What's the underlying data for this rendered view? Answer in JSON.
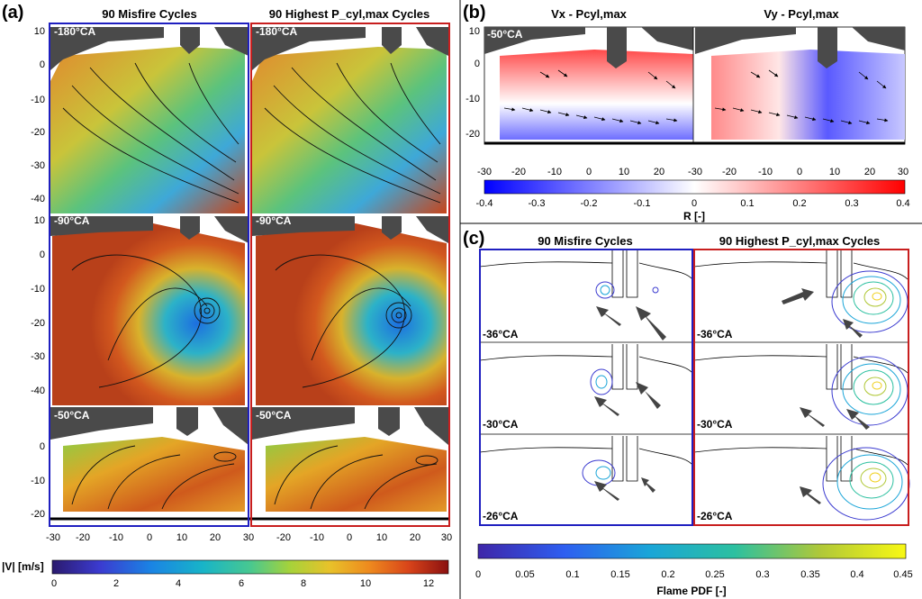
{
  "panel_a": {
    "label": "(a)",
    "col_titles": [
      "90 Misfire Cycles",
      "90 Highest P_cyl,max Cycles"
    ],
    "row_labels": [
      "-180°CA",
      "-90°CA",
      "-50°CA"
    ],
    "yticks_rows": [
      [
        "10",
        "0",
        "-10",
        "-20",
        "-30",
        "-40"
      ],
      [
        "10",
        "0",
        "-10",
        "-20",
        "-30",
        "-40"
      ],
      [
        "0",
        "-10",
        "-20"
      ]
    ],
    "xticks": [
      "-30",
      "-20",
      "-10",
      "0",
      "10",
      "20",
      "30",
      "-20",
      "-10",
      "0",
      "10",
      "20",
      "30"
    ],
    "colorbar_label": "|V| [m/s]",
    "colorbar_ticks": [
      "0",
      "2",
      "4",
      "6",
      "8",
      "10",
      "12"
    ],
    "colors": {
      "misfire_border": "#1f1fc0",
      "highest_border": "#c81e1e",
      "head": "#4a4a4a"
    }
  },
  "panel_b": {
    "label": "(b)",
    "titles": [
      "Vx - Pcyl,max",
      "Vy - Pcyl,max"
    ],
    "row_label": "-50°CA",
    "yticks": [
      "10",
      "0",
      "-10",
      "-20"
    ],
    "xticks": [
      "-30",
      "-20",
      "-10",
      "0",
      "10",
      "20",
      "-30",
      "-20",
      "-10",
      "0",
      "10",
      "20",
      "30"
    ],
    "colorbar_label": "R [-]",
    "colorbar_ticks": [
      "-0.4",
      "-0.3",
      "-0.2",
      "-0.1",
      "0",
      "0.1",
      "0.2",
      "0.3",
      "0.4"
    ]
  },
  "panel_c": {
    "label": "(c)",
    "col_titles": [
      "90 Misfire Cycles",
      "90 Highest P_cyl,max Cycles"
    ],
    "row_labels": [
      "-36°CA",
      "-30°CA",
      "-26°CA"
    ],
    "colorbar_label": "Flame PDF [-]",
    "colorbar_ticks": [
      "0",
      "0.05",
      "0.1",
      "0.15",
      "0.2",
      "0.25",
      "0.3",
      "0.35",
      "0.4",
      "0.45"
    ]
  }
}
